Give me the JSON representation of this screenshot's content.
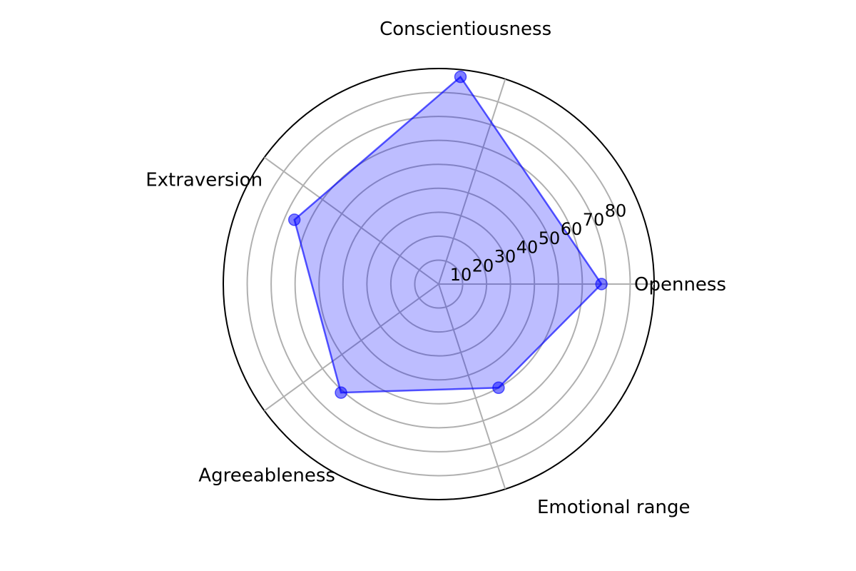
{
  "chart_data": {
    "type": "radar",
    "categories": [
      "Openness",
      "Conscientiousness",
      "Extraversion",
      "Agreeableness",
      "Emotional range"
    ],
    "series": [
      {
        "values": [
          68,
          87,
          66,
          61,
          50
        ],
        "color": "#0000ff"
      }
    ],
    "rticks": [
      10,
      20,
      30,
      40,
      50,
      60,
      70,
      80
    ],
    "rlim": [
      0,
      90
    ],
    "grid": true,
    "title": "",
    "fill_color": "#0000ff",
    "grid_color": "#b0b0b0",
    "outline_color": "#000000"
  }
}
